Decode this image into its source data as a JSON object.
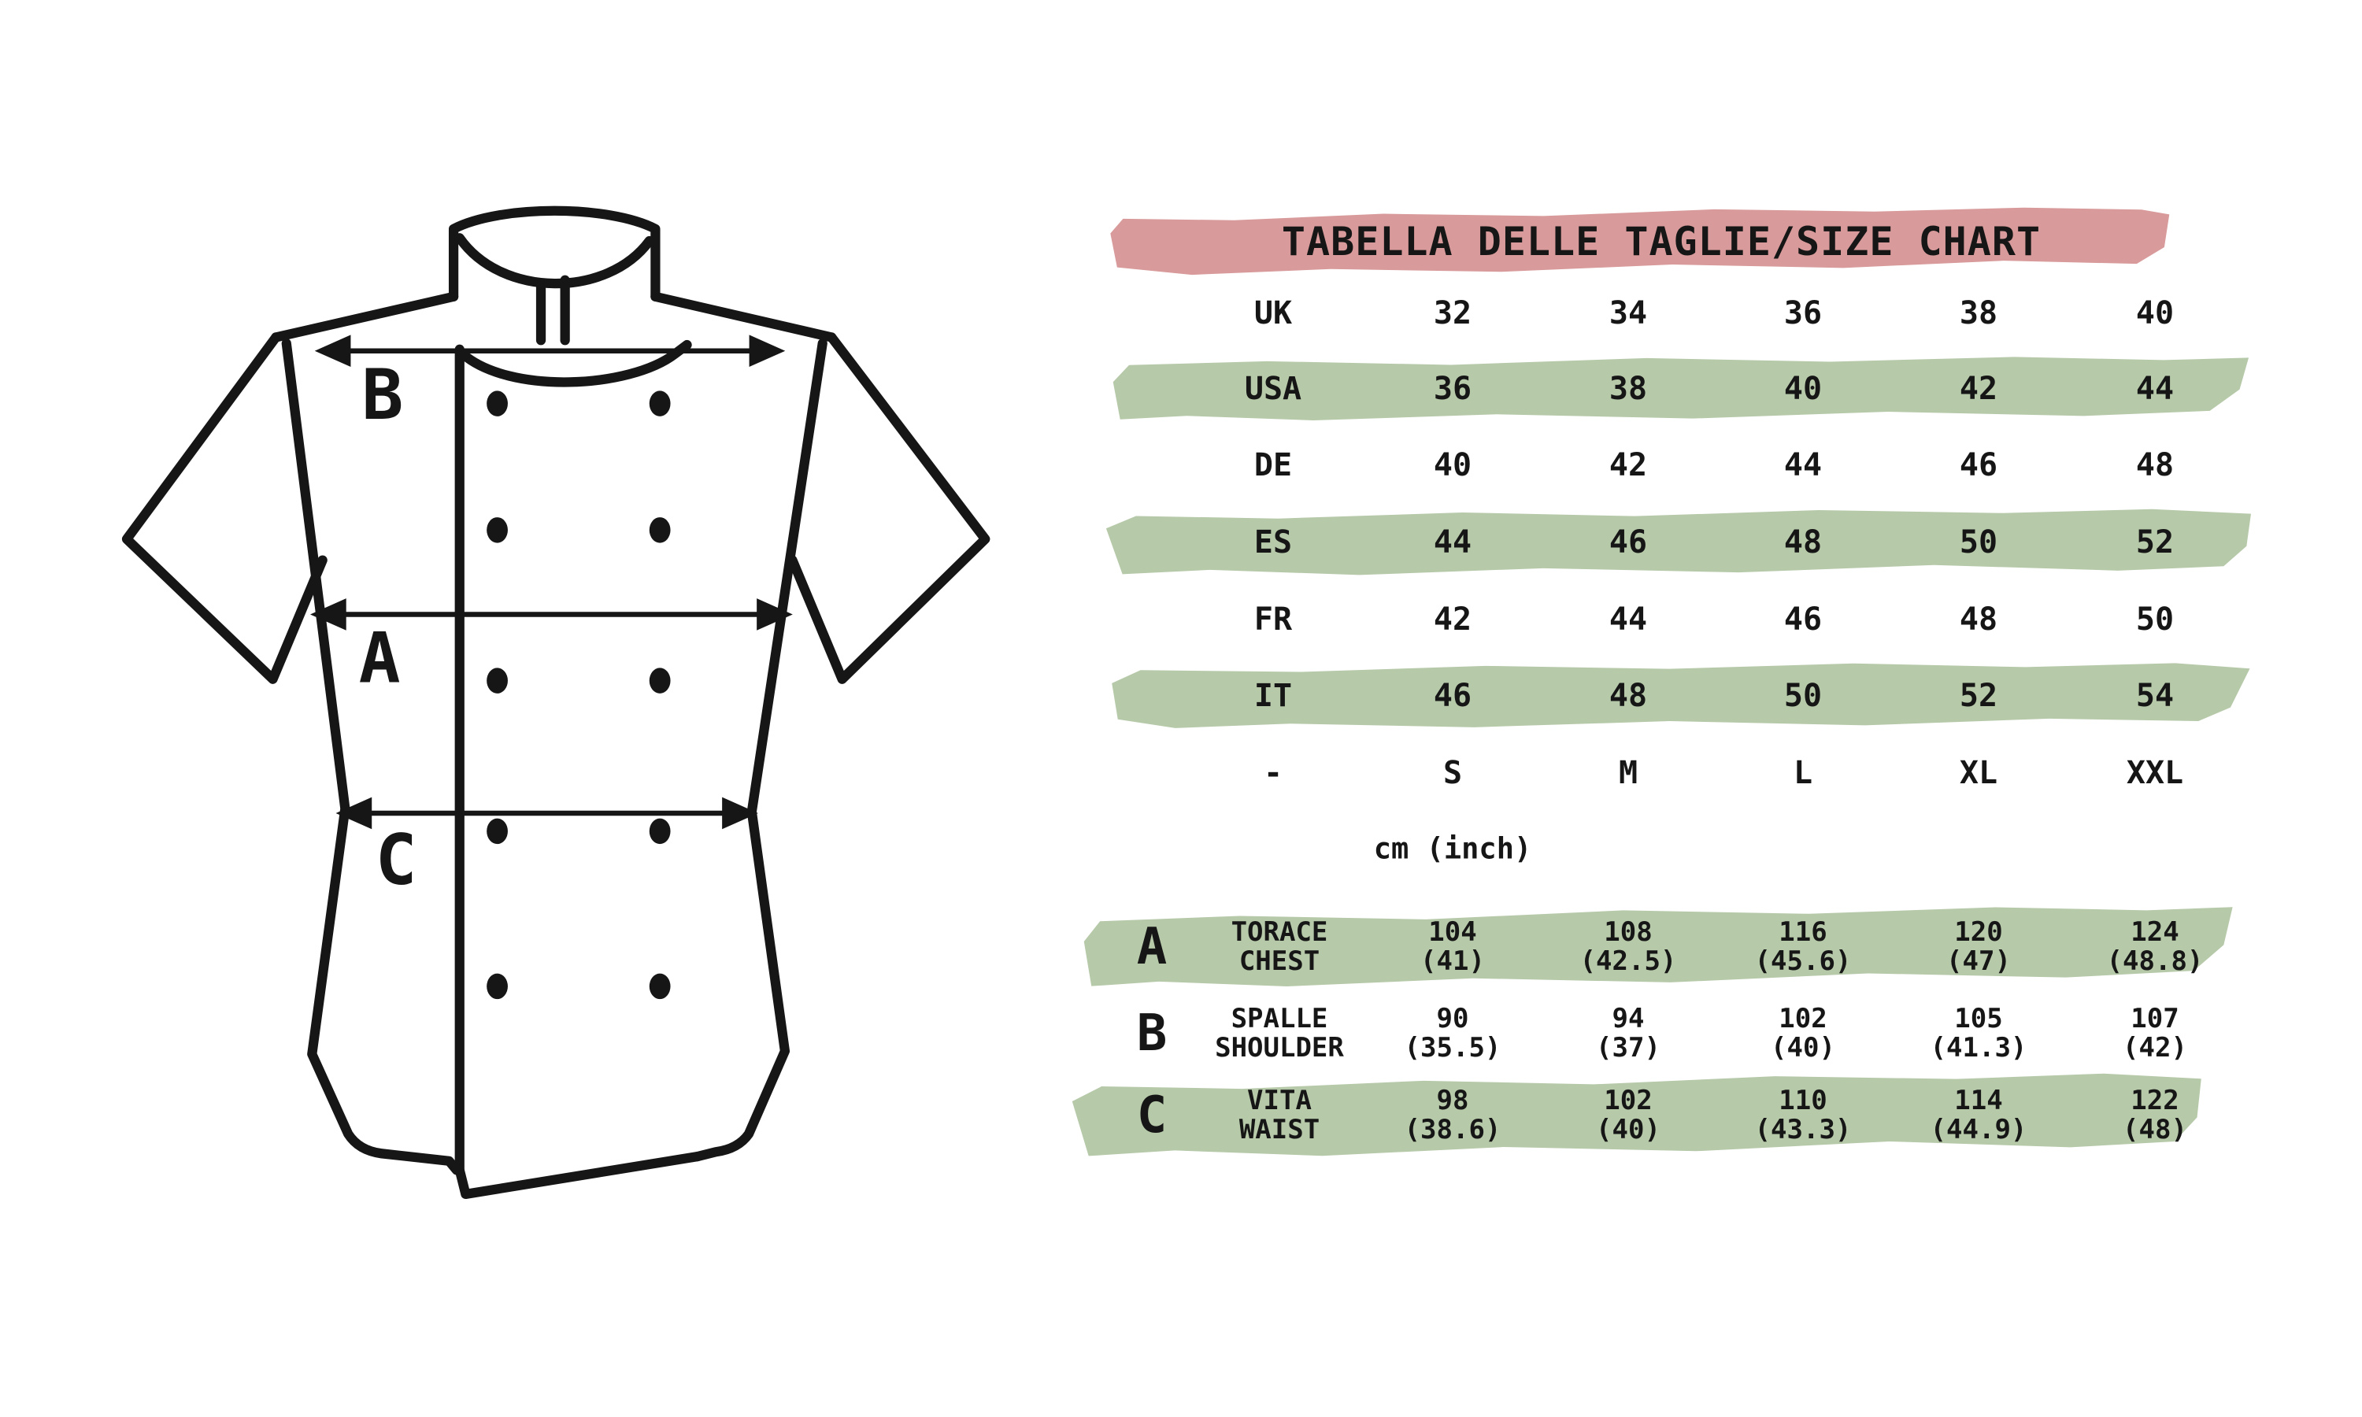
{
  "title": "TABELLA DELLE TAGLIE/SIZE CHART",
  "unit_note": "cm (inch)",
  "size_chart": {
    "rows": [
      {
        "label": "UK",
        "band": false,
        "values": [
          "32",
          "34",
          "36",
          "38",
          "40"
        ]
      },
      {
        "label": "USA",
        "band": true,
        "values": [
          "36",
          "38",
          "40",
          "42",
          "44"
        ]
      },
      {
        "label": "DE",
        "band": false,
        "values": [
          "40",
          "42",
          "44",
          "46",
          "48"
        ]
      },
      {
        "label": "ES",
        "band": true,
        "values": [
          "44",
          "46",
          "48",
          "50",
          "52"
        ]
      },
      {
        "label": "FR",
        "band": false,
        "values": [
          "42",
          "44",
          "46",
          "48",
          "50"
        ]
      },
      {
        "label": "IT",
        "band": true,
        "values": [
          "46",
          "48",
          "50",
          "52",
          "54"
        ]
      },
      {
        "label": "-",
        "band": false,
        "values": [
          "S",
          "M",
          "L",
          "XL",
          "XXL"
        ]
      }
    ]
  },
  "measurements": {
    "rows": [
      {
        "letter": "A",
        "band": true,
        "label_it": "TORACE",
        "label_en": "CHEST",
        "values_cm": [
          "104",
          "108",
          "116",
          "120",
          "124"
        ],
        "values_inch": [
          "(41)",
          "(42.5)",
          "(45.6)",
          "(47)",
          "(48.8)"
        ]
      },
      {
        "letter": "B",
        "band": false,
        "label_it": "SPALLE",
        "label_en": "SHOULDER",
        "values_cm": [
          "90",
          "94",
          "102",
          "105",
          "107"
        ],
        "values_inch": [
          "(35.5)",
          "(37)",
          "(40)",
          "(41.3)",
          "(42)"
        ]
      },
      {
        "letter": "C",
        "band": true,
        "label_it": "VITA",
        "label_en": "WAIST",
        "values_cm": [
          "98",
          "102",
          "110",
          "114",
          "122"
        ],
        "values_inch": [
          "(38.6)",
          "(40)",
          "(43.3)",
          "(44.9)",
          "(48)"
        ]
      }
    ]
  },
  "diagram": {
    "label_shoulder": "B",
    "label_chest": "A",
    "label_waist": "C"
  },
  "colors": {
    "banner_pink": "#d89a9a",
    "band_green": "#b6c9a9",
    "ink": "#161616"
  },
  "chart_data": {
    "type": "table",
    "title": "TABELLA DELLE TAGLIE/SIZE CHART",
    "columns": [
      "S",
      "M",
      "L",
      "XL",
      "XXL"
    ],
    "size_conversion": {
      "UK": [
        32,
        34,
        36,
        38,
        40
      ],
      "USA": [
        36,
        38,
        40,
        42,
        44
      ],
      "DE": [
        40,
        42,
        44,
        46,
        48
      ],
      "ES": [
        44,
        46,
        48,
        50,
        52
      ],
      "FR": [
        42,
        44,
        46,
        48,
        50
      ],
      "IT": [
        46,
        48,
        50,
        52,
        54
      ]
    },
    "measurements_cm": {
      "A_chest": [
        104,
        108,
        116,
        120,
        124
      ],
      "B_shoulder": [
        90,
        94,
        102,
        105,
        107
      ],
      "C_waist": [
        98,
        102,
        110,
        114,
        122
      ]
    },
    "measurements_inch": {
      "A_chest": [
        41,
        42.5,
        45.6,
        47,
        48.8
      ],
      "B_shoulder": [
        35.5,
        37,
        40,
        41.3,
        42
      ],
      "C_waist": [
        38.6,
        40,
        43.3,
        44.9,
        48
      ]
    }
  }
}
